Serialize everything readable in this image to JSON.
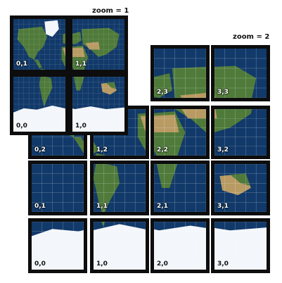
{
  "zoom_levels": [
    {
      "label": "zoom = 1",
      "tiles": [
        {
          "label": "0,1",
          "col": 0,
          "row": 0
        },
        {
          "label": "1,1",
          "col": 1,
          "row": 0
        },
        {
          "label": "0,0",
          "col": 0,
          "row": 1
        },
        {
          "label": "1,0",
          "col": 1,
          "row": 1
        }
      ]
    },
    {
      "label": "zoom = 2",
      "tiles": [
        {
          "label": "2,3",
          "col": 2,
          "row": 0
        },
        {
          "label": "3,3",
          "col": 3,
          "row": 0
        },
        {
          "label": "0,2",
          "col": 0,
          "row": 1
        },
        {
          "label": "1,2",
          "col": 1,
          "row": 1
        },
        {
          "label": "2,2",
          "col": 2,
          "row": 1
        },
        {
          "label": "3,2",
          "col": 3,
          "row": 1
        },
        {
          "label": "0,1",
          "col": 0,
          "row": 2
        },
        {
          "label": "1,1",
          "col": 1,
          "row": 2
        },
        {
          "label": "2,1",
          "col": 2,
          "row": 2
        },
        {
          "label": "3,1",
          "col": 3,
          "row": 2
        },
        {
          "label": "0,0",
          "col": 0,
          "row": 3
        },
        {
          "label": "1,0",
          "col": 1,
          "row": 3
        },
        {
          "label": "2,0",
          "col": 2,
          "row": 3
        },
        {
          "label": "3,0",
          "col": 3,
          "row": 3
        }
      ]
    }
  ],
  "colors": {
    "ocean": "#0b2d5a",
    "land": "#4f7a3a",
    "desert": "#b89a63",
    "ice": "#f3f6fa",
    "border": "#0d0d0d"
  }
}
